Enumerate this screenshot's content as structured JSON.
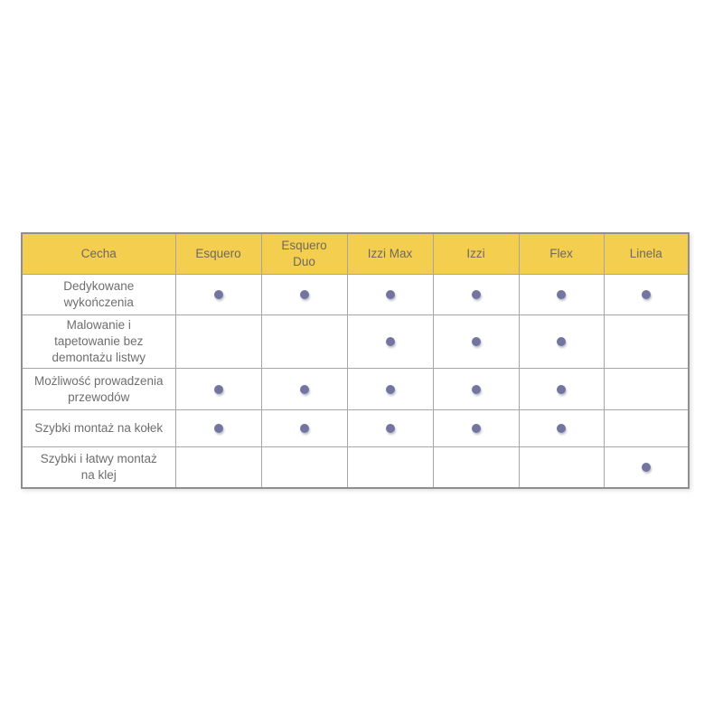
{
  "colors": {
    "header_bg": "#f4ce4f",
    "text": "#6e6e6e",
    "border": "#a6a6a6",
    "dot": "#7374a0",
    "page_bg": "#ffffff"
  },
  "table": {
    "columns": [
      "Cecha",
      "Esquero",
      "Esquero\nDuo",
      "Izzi Max",
      "Izzi",
      "Flex",
      "Linela"
    ],
    "rows": [
      {
        "label": "Dedykowane\nwykończenia",
        "dots": [
          1,
          1,
          1,
          1,
          1,
          1
        ]
      },
      {
        "label": "Malowanie i\ntapetowanie bez\ndemontażu listwy",
        "dots": [
          0,
          0,
          1,
          1,
          1,
          0
        ]
      },
      {
        "label": "Możliwość prowadzenia\nprzewodów",
        "dots": [
          1,
          1,
          1,
          1,
          1,
          0
        ]
      },
      {
        "label": "Szybki montaż na kołek",
        "dots": [
          1,
          1,
          1,
          1,
          1,
          0
        ]
      },
      {
        "label": "Szybki i łatwy montaż\nna klej",
        "dots": [
          0,
          0,
          0,
          0,
          0,
          1
        ]
      }
    ]
  }
}
